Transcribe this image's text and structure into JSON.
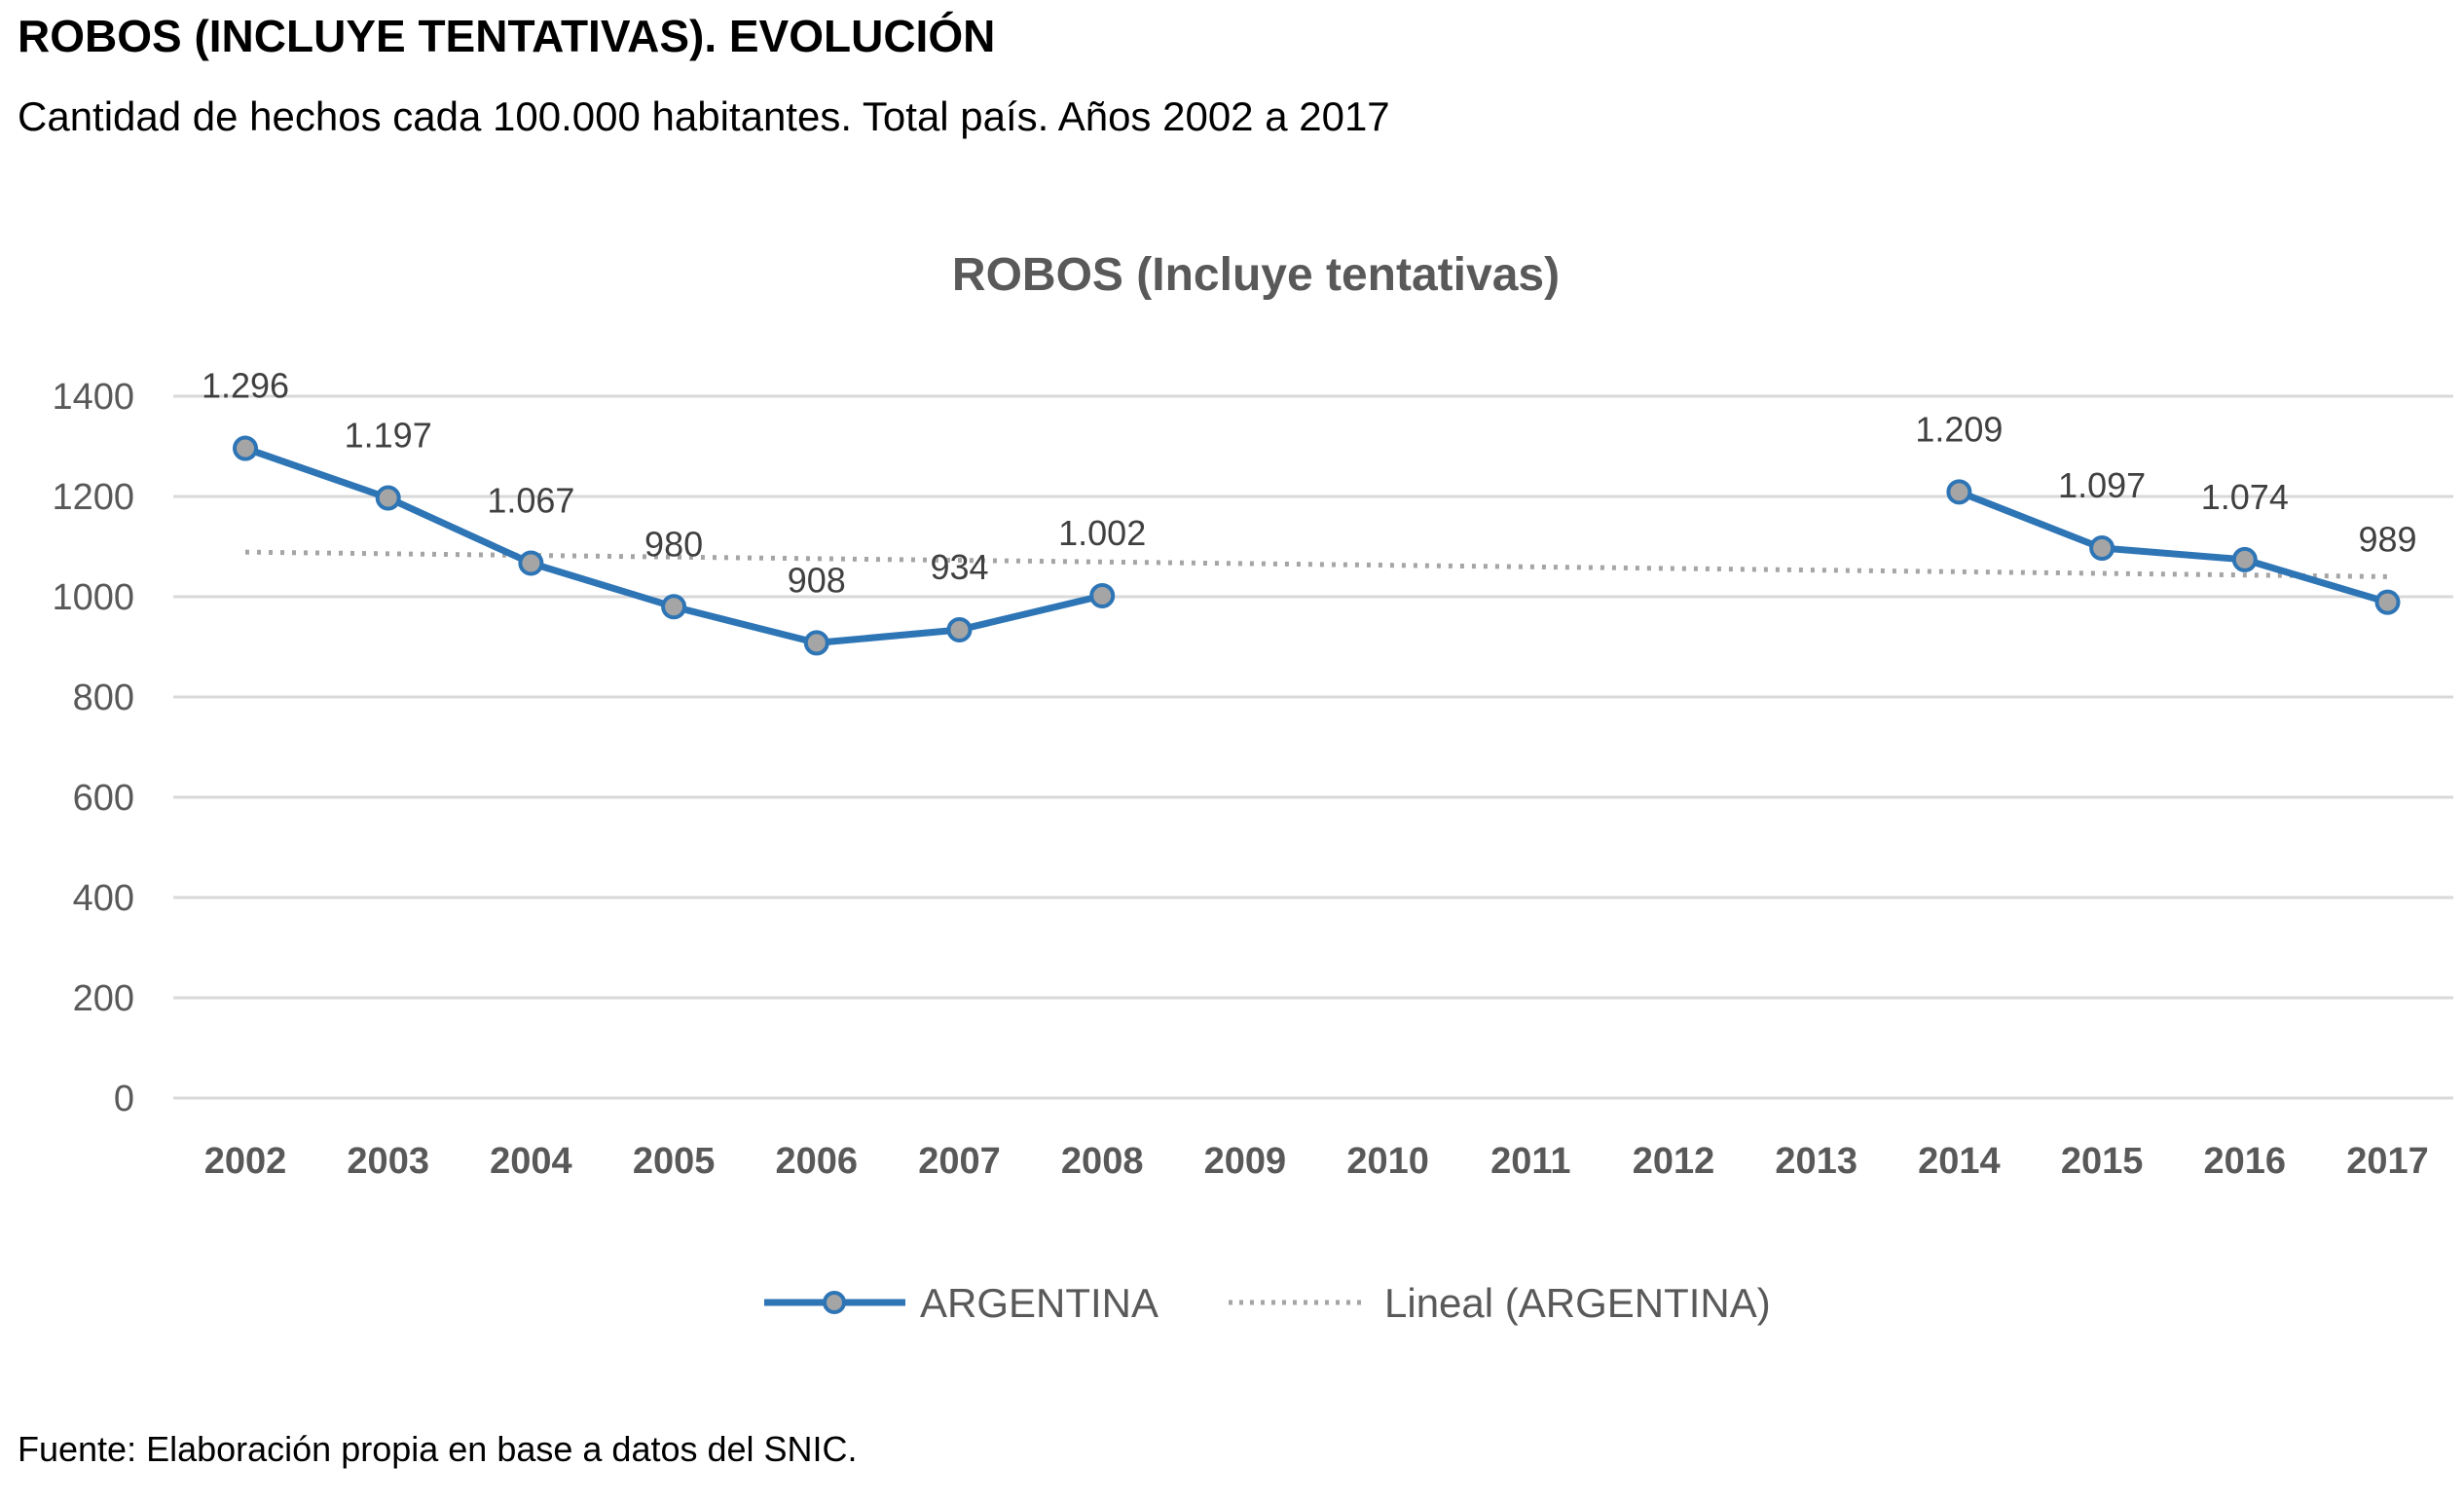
{
  "header": {
    "title": "ROBOS (INCLUYE TENTATIVAS). EVOLUCIÓN",
    "subtitle": "Cantidad de hechos cada 100.000 habitantes. Total país. Años 2002 a 2017"
  },
  "footer": {
    "source": "Fuente: Elaboración propia en base a datos del SNIC."
  },
  "chart_data": {
    "type": "line",
    "title": "ROBOS (Incluye tentativas)",
    "xlabel": "",
    "ylabel": "",
    "ylim": [
      0,
      1400
    ],
    "yticks": [
      "0",
      "200",
      "400",
      "600",
      "800",
      "1000",
      "1200",
      "1400"
    ],
    "categories": [
      "2002",
      "2003",
      "2004",
      "2005",
      "2006",
      "2007",
      "2008",
      "2009",
      "2010",
      "2011",
      "2012",
      "2013",
      "2014",
      "2015",
      "2016",
      "2017"
    ],
    "grid": true,
    "legend_position": "bottom",
    "series": [
      {
        "name": "ARGENTINA",
        "color": "#2E75B6",
        "marker_fill": "#A5A5A5",
        "values": [
          1296,
          1197,
          1067,
          980,
          908,
          934,
          1002,
          null,
          null,
          null,
          null,
          null,
          1209,
          1097,
          1074,
          989
        ],
        "data_labels": [
          "1.296",
          "1.197",
          "1.067",
          "980",
          "908",
          "934",
          "1.002",
          "",
          "",
          "",
          "",
          "",
          "1.209",
          "1.097",
          "1.074",
          "989"
        ]
      },
      {
        "name": "Lineal (ARGENTINA)",
        "style": "dotted",
        "color": "#A5A5A5",
        "trend_start": 1089,
        "trend_end": 1040
      }
    ]
  }
}
